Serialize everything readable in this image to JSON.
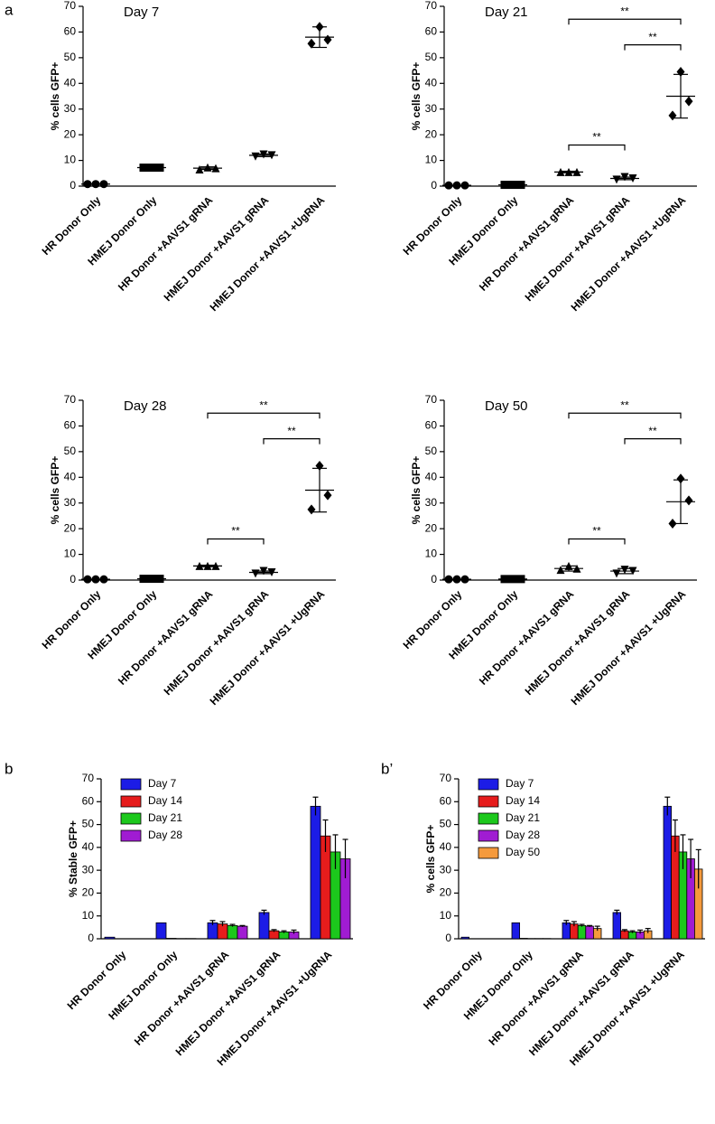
{
  "chart_data": [
    {
      "type": "dotplot",
      "panel_label": "a",
      "title": "Day 7",
      "ylabel": "% cells GFP+",
      "categories": [
        "HR Donor Only",
        "HMEJ Donor Only",
        "HR Donor +AAVS1 gRNA",
        "HMEJ Donor +AAVS1 gRNA",
        "HMEJ Donor +AAVS1 +UgRNA"
      ],
      "markers": [
        "circle",
        "square",
        "triangle-up",
        "triangle-down",
        "diamond"
      ],
      "values": [
        [
          0.8,
          0.8,
          0.8
        ],
        [
          7.2,
          7.2,
          7.2
        ],
        [
          7.3,
          6.5,
          7.0
        ],
        [
          12.3,
          11.5,
          12.0
        ],
        [
          62,
          55.5,
          57
        ]
      ],
      "mean": [
        0.8,
        7.2,
        7,
        12,
        58
      ],
      "sd": [
        0,
        0,
        0.5,
        0.5,
        4
      ],
      "brackets": [],
      "ylim": [
        0,
        70
      ],
      "yticks": [
        0,
        10,
        20,
        30,
        40,
        50,
        60,
        70
      ]
    },
    {
      "type": "dotplot",
      "title": "Day 21",
      "ylabel": "% cells GFP+",
      "categories": [
        "HR Donor Only",
        "HMEJ Donor Only",
        "HR Donor +AAVS1 gRNA",
        "HMEJ Donor +AAVS1 gRNA",
        "HMEJ Donor +AAVS1 +UgRNA"
      ],
      "markers": [
        "circle",
        "square",
        "triangle-up",
        "triangle-down",
        "diamond"
      ],
      "values": [
        [
          0.3,
          0.3,
          0.3
        ],
        [
          0.5,
          0.5,
          0.5
        ],
        [
          5.5,
          5.5,
          5.5
        ],
        [
          3.5,
          2.5,
          3.0
        ],
        [
          44.5,
          27.5,
          33
        ]
      ],
      "mean": [
        0.3,
        0.5,
        5.5,
        3,
        35
      ],
      "sd": [
        0,
        0,
        0.3,
        0.5,
        8.5
      ],
      "brackets": [
        {
          "from": 2,
          "to": 4,
          "y": 65,
          "label": "**"
        },
        {
          "from": 3,
          "to": 4,
          "y": 55,
          "label": "**"
        },
        {
          "from": 2,
          "to": 3,
          "y": 16,
          "label": "**"
        }
      ],
      "ylim": [
        0,
        70
      ],
      "yticks": [
        0,
        10,
        20,
        30,
        40,
        50,
        60,
        70
      ]
    },
    {
      "type": "dotplot",
      "title": "Day 28",
      "ylabel": "% cells GFP+",
      "categories": [
        "HR Donor Only",
        "HMEJ Donor Only",
        "HR Donor +AAVS1 gRNA",
        "HMEJ Donor +AAVS1 gRNA",
        "HMEJ Donor +AAVS1 +UgRNA"
      ],
      "markers": [
        "circle",
        "square",
        "triangle-up",
        "triangle-down",
        "diamond"
      ],
      "values": [
        [
          0.3,
          0.3,
          0.3
        ],
        [
          0.5,
          0.5,
          0.5
        ],
        [
          5.5,
          5.5,
          5.5
        ],
        [
          3.5,
          2.5,
          3.0
        ],
        [
          44.5,
          27.5,
          33
        ]
      ],
      "mean": [
        0.3,
        0.5,
        5.5,
        3,
        35
      ],
      "sd": [
        0,
        0,
        0.3,
        0.5,
        8.5
      ],
      "brackets": [
        {
          "from": 2,
          "to": 4,
          "y": 65,
          "label": "**"
        },
        {
          "from": 3,
          "to": 4,
          "y": 55,
          "label": "**"
        },
        {
          "from": 2,
          "to": 3,
          "y": 16,
          "label": "**"
        }
      ],
      "ylim": [
        0,
        70
      ],
      "yticks": [
        0,
        10,
        20,
        30,
        40,
        50,
        60,
        70
      ]
    },
    {
      "type": "dotplot",
      "title": "Day 50",
      "ylabel": "% cells GFP+",
      "categories": [
        "HR Donor Only",
        "HMEJ Donor Only",
        "HR Donor +AAVS1 gRNA",
        "HMEJ Donor +AAVS1 gRNA",
        "HMEJ Donor +AAVS1 +UgRNA"
      ],
      "markers": [
        "circle",
        "square",
        "triangle-up",
        "triangle-down",
        "diamond"
      ],
      "values": [
        [
          0.3,
          0.3,
          0.3
        ],
        [
          0.4,
          0.4,
          0.4
        ],
        [
          5.5,
          4.0,
          4.5
        ],
        [
          4.0,
          2.5,
          3.5
        ],
        [
          39.5,
          22,
          31
        ]
      ],
      "mean": [
        0.3,
        0.4,
        4.5,
        3.5,
        30.5
      ],
      "sd": [
        0,
        0,
        1,
        1,
        8.5
      ],
      "brackets": [
        {
          "from": 2,
          "to": 4,
          "y": 65,
          "label": "**"
        },
        {
          "from": 3,
          "to": 4,
          "y": 55,
          "label": "**"
        },
        {
          "from": 2,
          "to": 3,
          "y": 16,
          "label": "**"
        }
      ],
      "ylim": [
        0,
        70
      ],
      "yticks": [
        0,
        10,
        20,
        30,
        40,
        50,
        60,
        70
      ]
    },
    {
      "type": "bar",
      "panel_label": "b",
      "ylabel": "% Stable GFP+",
      "categories": [
        "HR Donor Only",
        "HMEJ Donor Only",
        "HR Donor +AAVS1 gRNA",
        "HMEJ Donor +AAVS1 gRNA",
        "HMEJ Donor +AAVS1 +UgRNA"
      ],
      "series": [
        {
          "name": "Day 7",
          "color": "#1c1ce6",
          "values": [
            0.7,
            7,
            7,
            11.5,
            58
          ],
          "errors": [
            0,
            0,
            1,
            1,
            4
          ]
        },
        {
          "name": "Day 14",
          "color": "#e61c1c",
          "values": [
            0,
            0.2,
            6.5,
            3.5,
            45
          ],
          "errors": [
            0,
            0,
            1,
            0.5,
            7
          ]
        },
        {
          "name": "Day 21",
          "color": "#1cc81c",
          "values": [
            0,
            0.1,
            5.8,
            3,
            38
          ],
          "errors": [
            0,
            0,
            0.5,
            0.5,
            7.5
          ]
        },
        {
          "name": "Day 28",
          "color": "#a01cd2",
          "values": [
            0,
            0.1,
            5.5,
            3,
            35
          ],
          "errors": [
            0,
            0,
            0.3,
            0.8,
            8.5
          ]
        }
      ],
      "ylim": [
        0,
        70
      ],
      "yticks": [
        0,
        10,
        20,
        30,
        40,
        50,
        60,
        70
      ]
    },
    {
      "type": "bar",
      "panel_label": "b’",
      "ylabel": "% cells GFP+",
      "categories": [
        "HR Donor Only",
        "HMEJ Donor Only",
        "HR Donor +AAVS1 gRNA",
        "HMEJ Donor +AAVS1 gRNA",
        "HMEJ Donor +AAVS1 +UgRNA"
      ],
      "series": [
        {
          "name": "Day 7",
          "color": "#1c1ce6",
          "values": [
            0.7,
            7,
            7,
            11.5,
            58
          ],
          "errors": [
            0,
            0,
            1,
            1,
            4
          ]
        },
        {
          "name": "Day 14",
          "color": "#e61c1c",
          "values": [
            0,
            0.2,
            6.5,
            3.5,
            45
          ],
          "errors": [
            0,
            0,
            1,
            0.5,
            7
          ]
        },
        {
          "name": "Day 21",
          "color": "#1cc81c",
          "values": [
            0,
            0.1,
            5.8,
            3,
            38
          ],
          "errors": [
            0,
            0,
            0.5,
            0.5,
            7.5
          ]
        },
        {
          "name": "Day 28",
          "color": "#a01cd2",
          "values": [
            0,
            0.1,
            5.5,
            3,
            35
          ],
          "errors": [
            0,
            0,
            0.3,
            0.8,
            8.5
          ]
        },
        {
          "name": "Day 50",
          "color": "#f59a3c",
          "values": [
            0,
            0.1,
            4.5,
            3.5,
            30.5
          ],
          "errors": [
            0,
            0,
            1,
            1,
            8.5
          ]
        }
      ],
      "ylim": [
        0,
        70
      ],
      "yticks": [
        0,
        10,
        20,
        30,
        40,
        50,
        60,
        70
      ]
    }
  ]
}
